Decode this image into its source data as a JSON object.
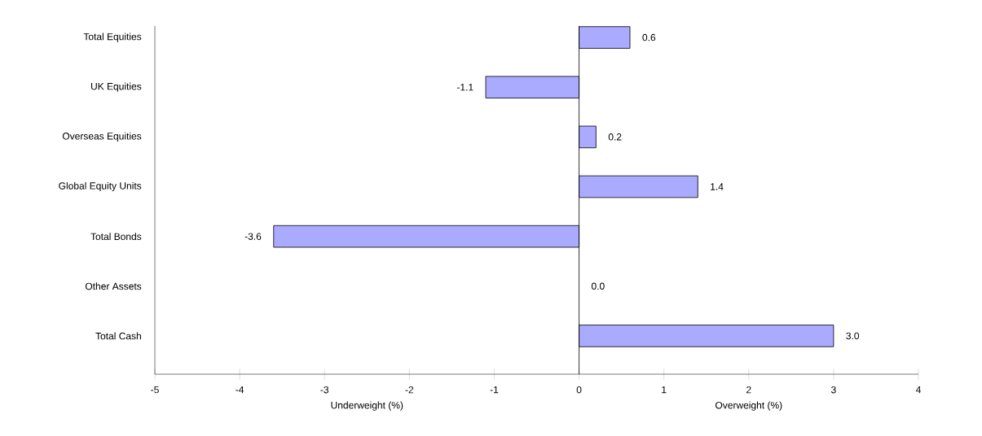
{
  "chart_data": {
    "type": "bar",
    "orientation": "horizontal",
    "categories": [
      "Total Equities",
      "UK Equities",
      "Overseas Equities",
      "Global Equity Units",
      "Total Bonds",
      "Other Assets",
      "Total Cash"
    ],
    "values": [
      0.6,
      -1.1,
      0.2,
      1.4,
      -3.6,
      0.0,
      3.0
    ],
    "value_labels": [
      "0.6",
      "-1.1",
      "0.2",
      "1.4",
      "-3.6",
      "0.0",
      "3.0"
    ],
    "color": "#aaaaff",
    "xlim": [
      -5,
      4
    ],
    "xticks": [
      -5,
      -4,
      -3,
      -2,
      -1,
      0,
      1,
      2,
      3,
      4
    ],
    "ref_lines": [
      {
        "axis": "x",
        "value": 0
      }
    ],
    "annotations": [
      "Underweight (%)",
      "Overweight (%)"
    ],
    "grid": false
  }
}
